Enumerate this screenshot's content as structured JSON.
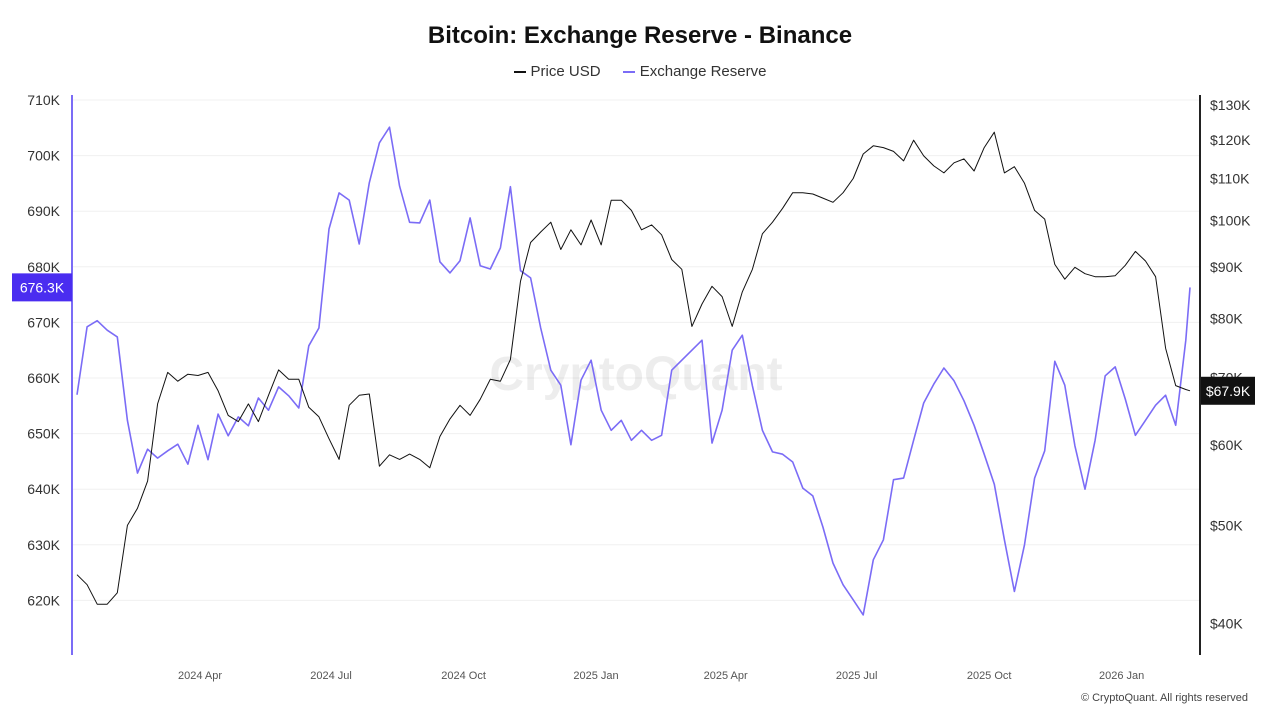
{
  "chart_data": {
    "type": "line",
    "title": "Bitcoin: Exchange Reserve - Binance",
    "legend": [
      "Price USD",
      "Exchange Reserve"
    ],
    "legend_placement": "top-center",
    "x_start": "2024-01-06",
    "x_step_days": 7,
    "x_tick_labels": [
      "2024 Apr",
      "2024 Jul",
      "2024 Oct",
      "2025 Jan",
      "2025 Apr",
      "2025 Jul",
      "2025 Oct",
      "2026 Jan"
    ],
    "x_tick_dates": [
      "2024-04-01",
      "2024-07-01",
      "2024-10-01",
      "2025-01-01",
      "2025-04-01",
      "2025-07-01",
      "2025-10-01",
      "2026-01-01"
    ],
    "left_axis": {
      "label": "Exchange Reserve",
      "ylim": [
        610,
        710
      ],
      "ticks": [
        620,
        630,
        640,
        650,
        660,
        670,
        680,
        690,
        700,
        710
      ],
      "tick_labels": [
        "620K",
        "630K",
        "640K",
        "650K",
        "660K",
        "670K",
        "680K",
        "690K",
        "700K",
        "710K"
      ]
    },
    "right_axis": {
      "label": "Price USD",
      "scale": "log",
      "ylim": [
        36.5,
        132
      ],
      "ticks": [
        40,
        50,
        60,
        70,
        80,
        90,
        100,
        110,
        120,
        130
      ],
      "tick_labels": [
        "$40K",
        "$50K",
        "$60K",
        "$70K",
        "$80K",
        "$90K",
        "$100K",
        "$110K",
        "$120K",
        "$130K"
      ]
    },
    "grid": true,
    "series": [
      {
        "name": "Exchange Reserve",
        "axis": "left",
        "unit": "K BTC",
        "color": "#7b6cf6",
        "values": [
          657,
          669.2,
          670.3,
          668.6,
          667.4,
          652.4,
          642.9,
          647.2,
          645.6,
          646.9,
          648.1,
          644.5,
          651.5,
          645.3,
          653.5,
          649.6,
          653,
          651.4,
          656.4,
          654.2,
          658.4,
          656.8,
          654.6,
          665.8,
          669,
          686.8,
          693.3,
          692,
          684.1,
          695.1,
          702.3,
          705.1,
          694.5,
          688,
          687.9,
          692,
          680.9,
          678.9,
          681.1,
          688.8,
          680.2,
          679.6,
          683.4,
          694.4,
          679.3,
          678,
          669,
          661.4,
          658.7,
          648,
          659.6,
          663.2,
          654.2,
          650.6,
          652.4,
          648.8,
          650.6,
          648.8,
          649.7,
          661.4,
          663.2,
          665,
          666.8,
          648.3,
          654.2,
          665,
          667.7,
          658.6,
          650.6,
          646.7,
          646.3,
          644.9,
          640.2,
          638.8,
          633.2,
          626.7,
          622.8,
          620.1,
          617.4,
          627.3,
          630.9,
          641.7,
          642,
          648.8,
          655.5,
          658.9,
          661.8,
          659.5,
          655.9,
          651.5,
          646.3,
          640.9,
          630.9,
          621.6,
          630,
          642,
          646.9,
          663,
          658.7,
          647.8,
          640,
          648.8,
          660.4,
          662,
          656.2,
          649.7,
          652.4,
          655.1,
          656.9,
          651.5,
          666.8,
          676.3
        ]
      },
      {
        "name": "Price USD",
        "axis": "right",
        "unit": "K USD",
        "color": "#111111",
        "values": [
          44.7,
          43.7,
          41.8,
          41.8,
          42.9,
          50,
          52,
          55.3,
          65.9,
          70.8,
          69.4,
          70.5,
          70.3,
          70.8,
          67.9,
          64.2,
          63.3,
          65.9,
          63.3,
          67.2,
          71.2,
          69.7,
          69.7,
          65.4,
          64,
          60.9,
          58.1,
          65.7,
          67.2,
          67.4,
          57.2,
          58.7,
          58.1,
          58.8,
          58.1,
          57,
          61.2,
          63.7,
          65.7,
          64.2,
          66.6,
          69.7,
          69.4,
          72.9,
          87.1,
          95.1,
          97.4,
          99.6,
          93.6,
          97.9,
          94.6,
          100.1,
          94.6,
          104.7,
          104.7,
          102.3,
          97.9,
          99,
          96.8,
          91.5,
          89.5,
          78.6,
          82.7,
          86.1,
          84.1,
          78.6,
          85,
          89.5,
          97,
          99.6,
          102.8,
          106.5,
          106.5,
          106.2,
          105.2,
          104.2,
          106.5,
          110,
          116.3,
          118.5,
          118,
          117,
          114.5,
          120,
          115.8,
          113.2,
          111.4,
          114,
          115,
          111.9,
          118,
          122.2,
          111.4,
          113,
          108.8,
          102.3,
          100.3,
          90.5,
          87.5,
          89.9,
          88.6,
          88,
          88,
          88.2,
          90.3,
          93.2,
          91.2,
          88,
          74.8,
          68.7,
          68.1,
          67.9
        ]
      }
    ],
    "current_labels": {
      "reserve": "676.3K",
      "price": "$67.9K"
    },
    "watermark": "CryptoQuant",
    "footer": "© CryptoQuant. All rights reserved"
  }
}
